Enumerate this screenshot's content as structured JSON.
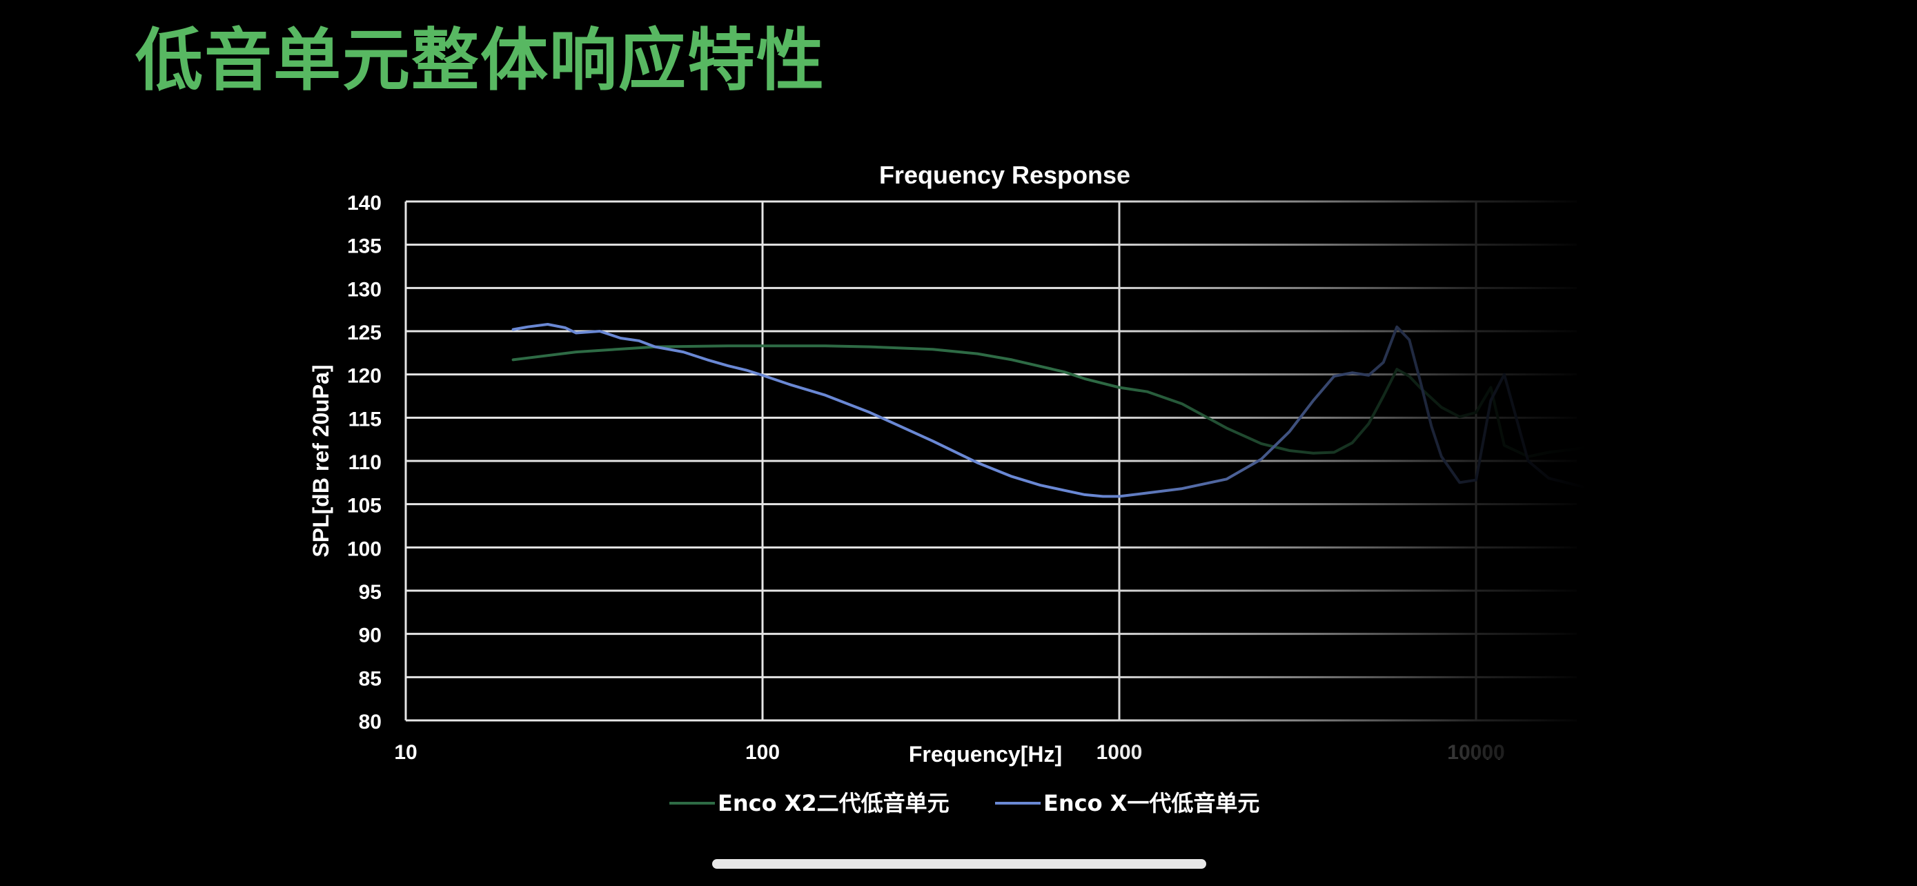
{
  "slide": {
    "title": "低音单元整体响应特性"
  },
  "colors": {
    "title": "#58b862",
    "grid": "#e6e6e6",
    "series_x2": "#2e6b45",
    "series_x": "#6a88d4"
  },
  "chart_data": {
    "type": "line",
    "title": "Frequency Response",
    "xlabel": "Frequency[Hz]",
    "ylabel": "SPL[dB ref 20uPa]",
    "x_scale": "log",
    "xlim": [
      10,
      20000
    ],
    "ylim": [
      80,
      140
    ],
    "xticks": [
      10,
      100,
      1000,
      10000
    ],
    "yticks": [
      80,
      85,
      90,
      95,
      100,
      105,
      110,
      115,
      120,
      125,
      130,
      135,
      140
    ],
    "grid": true,
    "legend_position": "bottom",
    "series": [
      {
        "name": "Enco X2二代低音单元",
        "x": [
          20,
          30,
          50,
          80,
          100,
          150,
          200,
          300,
          400,
          500,
          700,
          800,
          1000,
          1200,
          1500,
          2000,
          2500,
          3000,
          3500,
          4000,
          4500,
          5000,
          5500,
          6000,
          6500,
          7000,
          8000,
          9000,
          10000,
          11000,
          12000,
          14000,
          16000,
          20000
        ],
        "y": [
          121.7,
          122.6,
          123.2,
          123.3,
          123.3,
          123.3,
          123.2,
          122.9,
          122.4,
          121.7,
          120.3,
          119.5,
          118.5,
          118.0,
          116.6,
          113.8,
          112.0,
          111.2,
          110.9,
          111.0,
          112.1,
          114.3,
          117.5,
          120.6,
          119.8,
          118.4,
          116.2,
          115.1,
          115.6,
          118.5,
          111.8,
          110.5,
          111.0,
          111.5
        ]
      },
      {
        "name": "Enco X一代低音单元",
        "x": [
          20,
          22,
          25,
          28,
          30,
          35,
          40,
          45,
          50,
          60,
          70,
          80,
          90,
          100,
          120,
          150,
          200,
          300,
          400,
          500,
          600,
          700,
          800,
          900,
          1000,
          1200,
          1500,
          2000,
          2500,
          3000,
          3500,
          4000,
          4500,
          5000,
          5500,
          6000,
          6500,
          7000,
          7500,
          8000,
          9000,
          10000,
          11000,
          12000,
          14000,
          16000,
          20000
        ],
        "y": [
          125.2,
          125.5,
          125.8,
          125.4,
          124.8,
          125.0,
          124.2,
          123.9,
          123.2,
          122.6,
          121.7,
          121.0,
          120.5,
          119.9,
          118.8,
          117.6,
          115.6,
          112.3,
          109.8,
          108.2,
          107.2,
          106.6,
          106.1,
          105.9,
          105.9,
          106.3,
          106.8,
          107.9,
          110.2,
          113.4,
          117.0,
          119.8,
          120.2,
          119.9,
          121.4,
          125.5,
          124.0,
          119.0,
          114.0,
          110.5,
          107.5,
          107.8,
          117.0,
          120.0,
          110.0,
          108.0,
          107.0
        ]
      }
    ]
  }
}
